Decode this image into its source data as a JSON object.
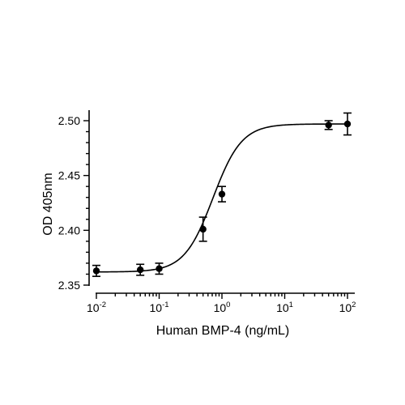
{
  "chart_data": {
    "type": "scatter",
    "title": "",
    "xlabel": "Human BMP-4 (ng/mL)",
    "ylabel": "OD 405nm",
    "x_scale": "log",
    "xlim": [
      0.01,
      100
    ],
    "ylim": [
      2.35,
      2.51
    ],
    "x_ticks": [
      {
        "base": "10",
        "exp": "-2",
        "value": 0.01
      },
      {
        "base": "10",
        "exp": "-1",
        "value": 0.1
      },
      {
        "base": "10",
        "exp": "0",
        "value": 1
      },
      {
        "base": "10",
        "exp": "1",
        "value": 10
      },
      {
        "base": "10",
        "exp": "2",
        "value": 100
      }
    ],
    "y_ticks": [
      {
        "label": "2.35",
        "value": 2.35
      },
      {
        "label": "2.40",
        "value": 2.4
      },
      {
        "label": "2.45",
        "value": 2.45
      },
      {
        "label": "2.50",
        "value": 2.5
      }
    ],
    "series": [
      {
        "points": [
          {
            "x": 0.01,
            "y": 2.363,
            "err": 0.005
          },
          {
            "x": 0.05,
            "y": 2.364,
            "err": 0.005
          },
          {
            "x": 0.1,
            "y": 2.365,
            "err": 0.005
          },
          {
            "x": 0.5,
            "y": 2.401,
            "err": 0.011
          },
          {
            "x": 1,
            "y": 2.433,
            "err": 0.007
          },
          {
            "x": 50,
            "y": 2.496,
            "err": 0.004
          },
          {
            "x": 100,
            "y": 2.497,
            "err": 0.01
          }
        ],
        "fit": {
          "model": "4PL",
          "bottom": 2.362,
          "top": 2.497,
          "ec50": 0.72,
          "hill": 1.9
        }
      }
    ],
    "grid": false,
    "legend": "none",
    "colors": {
      "marks": "#000000",
      "background": "#ffffff"
    }
  }
}
